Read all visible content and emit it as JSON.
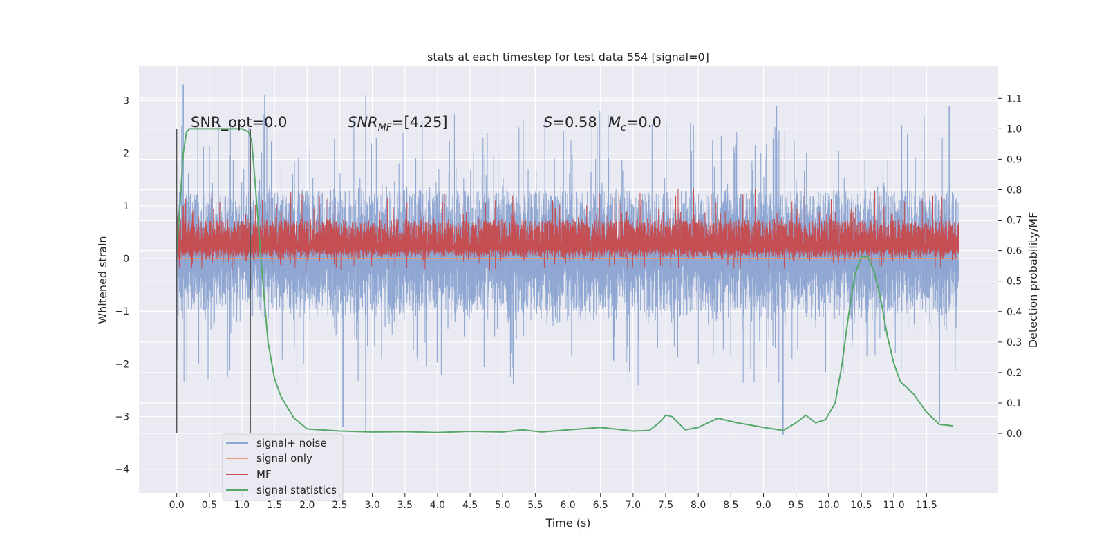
{
  "chart_data": {
    "type": "line",
    "title": "stats at each timestep for test data 554 [signal=0]",
    "xlabel": "Time (s)",
    "ylabel": "Whitened strain",
    "y2label": "Detection probability/MF",
    "xlim": [
      -0.58,
      12.6
    ],
    "ylim": [
      -4.45,
      3.65
    ],
    "y2lim": [
      -0.195,
      1.205
    ],
    "xticks": [
      "0.0",
      "0.5",
      "1.0",
      "1.5",
      "2.0",
      "2.5",
      "3.0",
      "3.5",
      "4.0",
      "4.5",
      "5.0",
      "5.5",
      "6.0",
      "6.5",
      "7.0",
      "7.5",
      "8.0",
      "8.5",
      "9.0",
      "9.5",
      "10.0",
      "10.5",
      "11.0",
      "11.5"
    ],
    "yticks": [
      "3",
      "2",
      "1",
      "0",
      "−1",
      "−2",
      "−3",
      "−4"
    ],
    "y2ticks": [
      "1.1",
      "1.0",
      "0.9",
      "0.8",
      "0.7",
      "0.6",
      "0.5",
      "0.4",
      "0.3",
      "0.2",
      "0.1",
      "0.0"
    ],
    "grid": true,
    "legend_position": "lower-left",
    "legend": [
      "signal+ noise",
      "signal only",
      "MF",
      "signal statistics"
    ],
    "annotations": {
      "snr_opt": "SNR_opt=0.0",
      "snr_mf_base": "SNR",
      "snr_mf_sub": "MF",
      "snr_mf_rest": "=[4.25]",
      "s_label": "S",
      "s_value": "=0.58",
      "mc_label": "M",
      "mc_sub": "c",
      "mc_value": "=0.0"
    },
    "window_markers": [
      0.0,
      1.13
    ],
    "series": [
      {
        "name": "signal+ noise",
        "axis": "left",
        "color": "#8fa7d2",
        "kind": "noise",
        "x_range": [
          0.0,
          12.0
        ],
        "center": -0.1,
        "band": [
          -1.2,
          1.3
        ],
        "peaks": [
          [
            0.1,
            3.3
          ],
          [
            1.35,
            3.1
          ],
          [
            2.9,
            3.1
          ],
          [
            9.2,
            2.9
          ],
          [
            11.85,
            2.9
          ]
        ],
        "troughs": [
          [
            2.55,
            -3.2
          ],
          [
            2.9,
            -3.3
          ],
          [
            9.3,
            -3.35
          ],
          [
            11.7,
            -3.1
          ]
        ]
      },
      {
        "name": "signal only",
        "axis": "left",
        "color": "#e39c7c",
        "kind": "flat",
        "x": [
          0.0,
          12.0
        ],
        "y": [
          0.0,
          0.0
        ]
      },
      {
        "name": "MF",
        "axis": "left",
        "color": "#c44e52",
        "kind": "noise",
        "x_range": [
          0.0,
          12.0
        ],
        "center": 0.2,
        "band": [
          0.0,
          0.75
        ],
        "peaks": [
          [
            0.1,
            1.0
          ],
          [
            1.6,
            0.9
          ],
          [
            6.9,
            0.9
          ]
        ]
      },
      {
        "name": "signal statistics",
        "axis": "right",
        "color": "#55a868",
        "kind": "line",
        "x": [
          0.0,
          0.05,
          0.1,
          0.15,
          0.2,
          0.3,
          0.5,
          0.8,
          1.0,
          1.1,
          1.15,
          1.2,
          1.3,
          1.4,
          1.5,
          1.6,
          1.8,
          2.0,
          2.5,
          3.0,
          3.5,
          4.0,
          4.5,
          5.0,
          5.3,
          5.6,
          6.0,
          6.5,
          7.0,
          7.25,
          7.4,
          7.5,
          7.6,
          7.8,
          8.0,
          8.3,
          8.6,
          9.0,
          9.3,
          9.5,
          9.65,
          9.8,
          9.95,
          10.1,
          10.2,
          10.3,
          10.4,
          10.5,
          10.6,
          10.7,
          10.8,
          10.9,
          11.0,
          11.1,
          11.3,
          11.5,
          11.7,
          11.9
        ],
        "y": [
          0.6,
          0.75,
          0.92,
          0.99,
          1.0,
          1.0,
          1.0,
          1.0,
          1.0,
          0.99,
          0.96,
          0.83,
          0.55,
          0.3,
          0.18,
          0.12,
          0.05,
          0.015,
          0.008,
          0.005,
          0.006,
          0.003,
          0.007,
          0.005,
          0.012,
          0.005,
          0.012,
          0.02,
          0.008,
          0.01,
          0.035,
          0.06,
          0.055,
          0.012,
          0.02,
          0.05,
          0.035,
          0.02,
          0.01,
          0.035,
          0.06,
          0.035,
          0.045,
          0.1,
          0.22,
          0.38,
          0.52,
          0.58,
          0.58,
          0.53,
          0.44,
          0.32,
          0.23,
          0.17,
          0.13,
          0.07,
          0.03,
          0.025
        ]
      }
    ]
  }
}
